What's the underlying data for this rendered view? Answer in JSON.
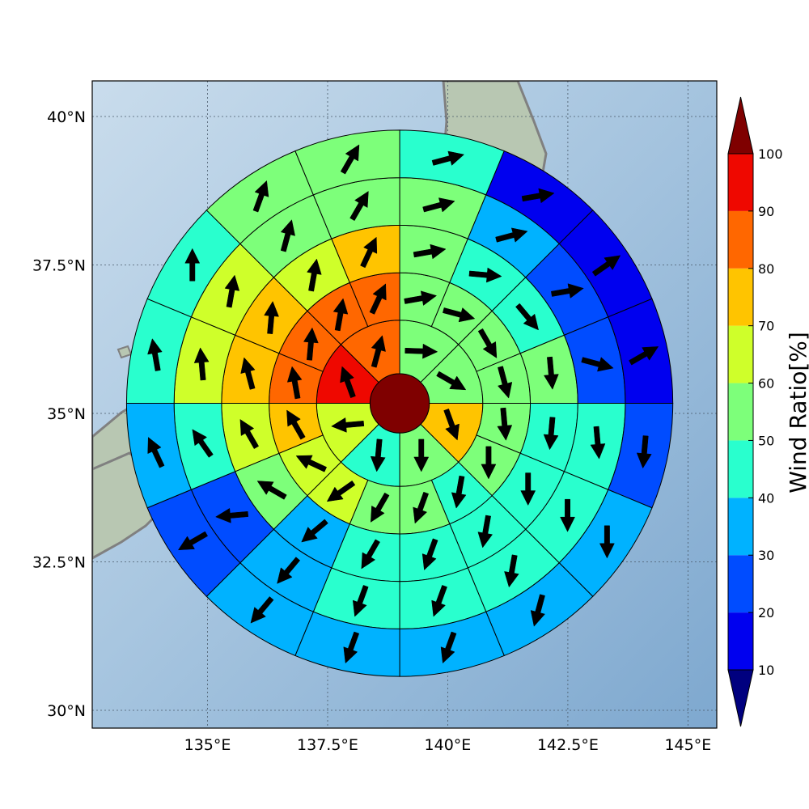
{
  "chart_data": {
    "type": "polar-sector-map",
    "x_ticks": [
      "135°E",
      "137.5°E",
      "140°E",
      "142.5°E",
      "145°E"
    ],
    "x_tick_values": [
      135,
      137.5,
      140,
      142.5,
      145
    ],
    "y_ticks": [
      "40°N",
      "37.5°N",
      "35°N",
      "32.5°N",
      "30°N"
    ],
    "y_tick_values": [
      40,
      37.5,
      35,
      32.5,
      30
    ],
    "xlim": [
      132.6,
      145.6
    ],
    "ylim": [
      29.7,
      40.6
    ],
    "grid": true,
    "center": {
      "lon": 139.0,
      "lat": 35.17
    },
    "ring_radii_deg": [
      0.5,
      1.4,
      2.2,
      3.0,
      3.8,
      4.6
    ],
    "sectors_per_ring": [
      1,
      8,
      16,
      16,
      16,
      16
    ],
    "colorbar": {
      "label": "Wind Ratio[%]",
      "ticks": [
        "10",
        "20",
        "30",
        "40",
        "50",
        "60",
        "70",
        "80",
        "90",
        "100"
      ],
      "bins": [
        0,
        10,
        20,
        30,
        40,
        50,
        60,
        70,
        80,
        90,
        100,
        110
      ],
      "colors": [
        "#00007f",
        "#0000ef",
        "#004cff",
        "#00b2ff",
        "#29ffce",
        "#7dff7a",
        "#cfff2a",
        "#ffc400",
        "#ff6700",
        "#ef0800",
        "#7f0000"
      ],
      "extend": "both"
    },
    "rings": [
      {
        "name": "center",
        "values": [
          105
        ],
        "wind_dir_deg": [
          null
        ]
      },
      {
        "name": "ring1",
        "values": [
          55,
          55,
          75,
          55,
          45,
          65,
          95,
          85
        ],
        "wind_dir_deg": [
          92,
          120,
          160,
          180,
          185,
          265,
          340,
          15
        ]
      },
      {
        "name": "ring2",
        "values": [
          55,
          55,
          55,
          55,
          55,
          55,
          45,
          55,
          55,
          65,
          65,
          75,
          85,
          85,
          85,
          85
        ],
        "wind_dir_deg": [
          80,
          105,
          150,
          165,
          175,
          180,
          190,
          200,
          210,
          235,
          295,
          330,
          350,
          5,
          10,
          25
        ]
      },
      {
        "name": "ring3",
        "values": [
          55,
          45,
          45,
          55,
          45,
          45,
          45,
          45,
          45,
          35,
          55,
          65,
          75,
          75,
          65,
          75
        ],
        "wind_dir_deg": [
          80,
          95,
          140,
          175,
          185,
          180,
          190,
          200,
          210,
          230,
          300,
          330,
          345,
          5,
          10,
          25
        ]
      },
      {
        "name": "ring4",
        "values": [
          55,
          35,
          25,
          25,
          45,
          45,
          45,
          45,
          45,
          35,
          25,
          45,
          65,
          65,
          55,
          55
        ],
        "wind_dir_deg": [
          75,
          75,
          80,
          105,
          175,
          180,
          190,
          200,
          200,
          220,
          265,
          325,
          355,
          10,
          15,
          30
        ]
      },
      {
        "name": "ring5",
        "values": [
          45,
          15,
          15,
          15,
          25,
          35,
          35,
          35,
          35,
          35,
          25,
          35,
          45,
          45,
          55,
          55
        ],
        "wind_dir_deg": [
          75,
          80,
          55,
          60,
          185,
          180,
          195,
          200,
          200,
          220,
          240,
          335,
          350,
          0,
          20,
          30
        ]
      }
    ]
  }
}
